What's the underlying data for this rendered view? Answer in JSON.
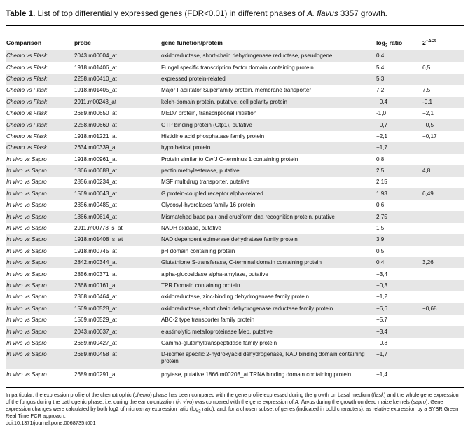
{
  "caption": {
    "label": "Table 1.",
    "text_before": " List of top differentially expressed genes (FDR<0.01) in different phases of ",
    "species": "A. flavus",
    "text_after": " 3357 growth."
  },
  "headers": {
    "comparison": "Comparison",
    "probe": "probe",
    "function": "gene function/protein",
    "ratio_base": "log",
    "ratio_sub": "2",
    "ratio_tail": " ratio",
    "qpcr_base": "2",
    "qpcr_sup": "−Δ",
    "qpcr_sup2": "Ct"
  },
  "rows": [
    {
      "comparison": "Chemo vs Flask",
      "probe": "2043.m00004_at",
      "function": "oxidoreductase, short-chain dehydrogenase reductase, pseudogene",
      "ratio": "0,4",
      "qpcr": ""
    },
    {
      "comparison": "Chemo vs Flask",
      "probe": "1918.m01406_at",
      "function": "Fungal specific transcription factor domain containing protein",
      "ratio": "5,4",
      "qpcr": "6,5"
    },
    {
      "comparison": "Chemo vs Flask",
      "probe": "2258.m00410_at",
      "function": "expressed protein-related",
      "ratio": "5,3",
      "qpcr": ""
    },
    {
      "comparison": "Chemo vs Flask",
      "probe": "1918.m01405_at",
      "function": "Major Facilitator Superfamily protein, membrane transporter",
      "ratio": "7,2",
      "qpcr": "7,5"
    },
    {
      "comparison": "Chemo vs Flask",
      "probe": "2911.m00243_at",
      "function": "kelch-domain protein, putative, cell polarity protein",
      "ratio": "−0,4",
      "qpcr": "-0.1"
    },
    {
      "comparison": "Chemo vs Flask",
      "probe": "2689.m00650_at",
      "function": "MED7 protein, transcriptional initiation",
      "ratio": "-1,0",
      "qpcr": "−2,1"
    },
    {
      "comparison": "Chemo vs Flask",
      "probe": "2258.m00669_at",
      "function": "GTP binding protein (Gtp1), putative",
      "ratio": "−0,7",
      "qpcr": "−0,5"
    },
    {
      "comparison": "Chemo vs Flask",
      "probe": "1918.m01221_at",
      "function": "Histidine acid phosphatase family protein",
      "ratio": "−2,1",
      "qpcr": "−0,17"
    },
    {
      "comparison": "Chemo vs Flask",
      "probe": "2634.m00339_at",
      "function": "hypothetical protein",
      "ratio": "−1,7",
      "qpcr": ""
    },
    {
      "comparison": "In vivo vs Sapro",
      "probe": "1918.m00961_at",
      "function": "Protein similar to CwfJ C-terminus 1 containing protein",
      "ratio": "0,8",
      "qpcr": ""
    },
    {
      "comparison": "In vivo vs Sapro",
      "probe": "1866.m00688_at",
      "function": "pectin methylesterase, putative",
      "ratio": "2,5",
      "qpcr": "4,8"
    },
    {
      "comparison": "In vivo vs Sapro",
      "probe": "2856.m00234_at",
      "function": "MSF multidrug transporter, putative",
      "ratio": "2,15",
      "qpcr": ""
    },
    {
      "comparison": "In vivo vs Sapro",
      "probe": "1569.m00043_at",
      "function": "G protein-coupled receptor alpha-related",
      "ratio": "1,93",
      "qpcr": "6,49"
    },
    {
      "comparison": "In vivo vs Sapro",
      "probe": "2856.m00485_at",
      "function": "Glycosyl-hydrolases family 16 protein",
      "ratio": "0,6",
      "qpcr": ""
    },
    {
      "comparison": "In vivo vs Sapro",
      "probe": "1866.m00614_at",
      "function": "Mismatched base pair and cruciform dna recognition protein, putative",
      "ratio": "2,75",
      "qpcr": ""
    },
    {
      "comparison": "In vivo vs Sapro",
      "probe": "2911.m00773_s_at",
      "function": "NADH oxidase, putative",
      "ratio": "1,5",
      "qpcr": ""
    },
    {
      "comparison": "In vivo vs Sapro",
      "probe": "1918.m01408_s_at",
      "function": "NAD dependent epimerase dehydratase family protein",
      "ratio": "3,9",
      "qpcr": ""
    },
    {
      "comparison": "In vivo vs Sapro",
      "probe": "1918.m00745_at",
      "function": "pH domain containing protein",
      "ratio": "0,5",
      "qpcr": ""
    },
    {
      "comparison": "In vivo vs Sapro",
      "probe": "2842.m00344_at",
      "function": "Glutathione S-transferase, C-terminal domain containing protein",
      "ratio": "0,4",
      "qpcr": "3,26"
    },
    {
      "comparison": "In vivo vs Sapro",
      "probe": "2856.m00371_at",
      "function": "alpha-glucosidase alpha-amylase, putative",
      "ratio": "−3,4",
      "qpcr": ""
    },
    {
      "comparison": "In vivo vs Sapro",
      "probe": "2368.m00161_at",
      "function": "TPR Domain containing protein",
      "ratio": "−0,3",
      "qpcr": ""
    },
    {
      "comparison": "In vivo vs Sapro",
      "probe": "2368.m00464_at",
      "function": "oxidoreductase, zinc-binding dehydrogenase family protein",
      "ratio": "−1,2",
      "qpcr": ""
    },
    {
      "comparison": "In vivo vs Sapro",
      "probe": "1569.m00528_at",
      "function": "oxidoreductase, short chain dehydrogenase reductase family protein",
      "ratio": "−6,6",
      "qpcr": "−0,68"
    },
    {
      "comparison": "In vivo vs Sapro",
      "probe": "1569.m00529_at",
      "function": "ABC-2 type transporter family protein",
      "ratio": "−5,7",
      "qpcr": ""
    },
    {
      "comparison": "In vivo vs Sapro",
      "probe": "2043.m00037_at",
      "function": "elastinolytic metalloproteinase Mep, putative",
      "ratio": "−3,4",
      "qpcr": ""
    },
    {
      "comparison": "In vivo vs Sapro",
      "probe": "2689.m00427_at",
      "function": "Gamma-glutamyltranspeptidase family protein",
      "ratio": "−0,8",
      "qpcr": ""
    },
    {
      "comparison": "In vivo vs Sapro",
      "probe": "2689.m00458_at",
      "function": "D-isomer specific 2-hydroxyacid dehydrogenase, NAD binding domain containing protein",
      "ratio": "−1,7",
      "qpcr": "",
      "tall": true
    },
    {
      "comparison": "In vivo vs Sapro",
      "probe": "2689.m00291_at",
      "function": "phytase, putative 1866.m00203_at TRNA binding domain containing protein",
      "ratio": "−1,4",
      "qpcr": "",
      "tall": true
    }
  ],
  "footnote": {
    "p1": "In particular, the expression profile of the chemotrophic (",
    "p1_i": "chemo",
    "p2": ") phase has been compared with the gene profile expressed during the growth on basal medium (",
    "p2_i": "flask",
    "p3": ") and the whole gene expression of the fungus during the pathogenic phase, i.e. during the ear colonization (",
    "p3_i": "in vivo",
    "p4": ") was compared with the gene expression of ",
    "p4_i": "A. flavus",
    "p5": " during the growth on dead maize kernels (",
    "p5_i": "sapro",
    "p6": "). Gene expression changes were calculated by both log2 of microarray expression ratio (log",
    "p6_sub": "2",
    "p7": " ratio), and, for a chosen subset of genes (indicated in bold characters), as relative expression by a SYBR Green Real Time PCR approach.",
    "doi": "doi:10.1371/journal.pone.0068735.t001"
  },
  "colors": {
    "stripe": "#e6e6e6",
    "rule": "#000000"
  }
}
